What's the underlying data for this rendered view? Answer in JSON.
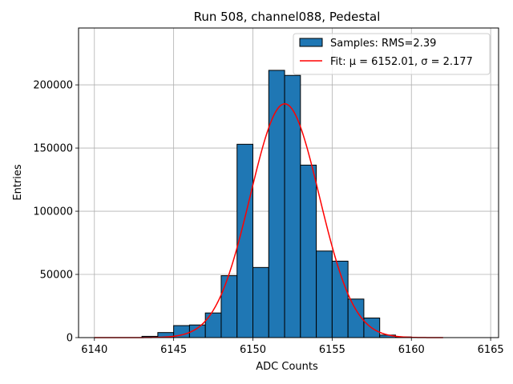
{
  "chart_data": {
    "type": "bar",
    "title": "Run 508, channel088, Pedestal",
    "xlabel": "ADC Counts",
    "ylabel": "Entries",
    "xlim": [
      6139,
      6165.5
    ],
    "ylim": [
      0,
      245000
    ],
    "xticks": [
      6140,
      6145,
      6150,
      6155,
      6160,
      6165
    ],
    "yticks": [
      0,
      50000,
      100000,
      150000,
      200000
    ],
    "grid": true,
    "legend_position": "top-right",
    "histogram": {
      "name": "Samples: RMS=2.39",
      "color": "#1f77b4",
      "edgecolor": "#000000",
      "bins": [
        {
          "x0": 6143,
          "x1": 6144,
          "value": 1000
        },
        {
          "x0": 6144,
          "x1": 6145,
          "value": 4000
        },
        {
          "x0": 6145,
          "x1": 6146,
          "value": 9500
        },
        {
          "x0": 6146,
          "x1": 6147,
          "value": 10000
        },
        {
          "x0": 6147,
          "x1": 6148,
          "value": 19500
        },
        {
          "x0": 6148,
          "x1": 6149,
          "value": 49000
        },
        {
          "x0": 6149,
          "x1": 6150,
          "value": 153000
        },
        {
          "x0": 6150,
          "x1": 6151,
          "value": 55500
        },
        {
          "x0": 6151,
          "x1": 6152,
          "value": 211500
        },
        {
          "x0": 6152,
          "x1": 6153,
          "value": 207500
        },
        {
          "x0": 6153,
          "x1": 6154,
          "value": 136500
        },
        {
          "x0": 6154,
          "x1": 6155,
          "value": 68500
        },
        {
          "x0": 6155,
          "x1": 6156,
          "value": 60500
        },
        {
          "x0": 6156,
          "x1": 6157,
          "value": 30500
        },
        {
          "x0": 6157,
          "x1": 6158,
          "value": 15500
        },
        {
          "x0": 6158,
          "x1": 6159,
          "value": 2000
        },
        {
          "x0": 6159,
          "x1": 6160,
          "value": 500
        }
      ]
    },
    "fit": {
      "name": "Fit: μ = 6152.01, σ = 2.177",
      "color": "#ff0000",
      "mu": 6152.01,
      "sigma": 2.177,
      "amplitude": 185000,
      "x_range": [
        6140,
        6162
      ]
    }
  }
}
